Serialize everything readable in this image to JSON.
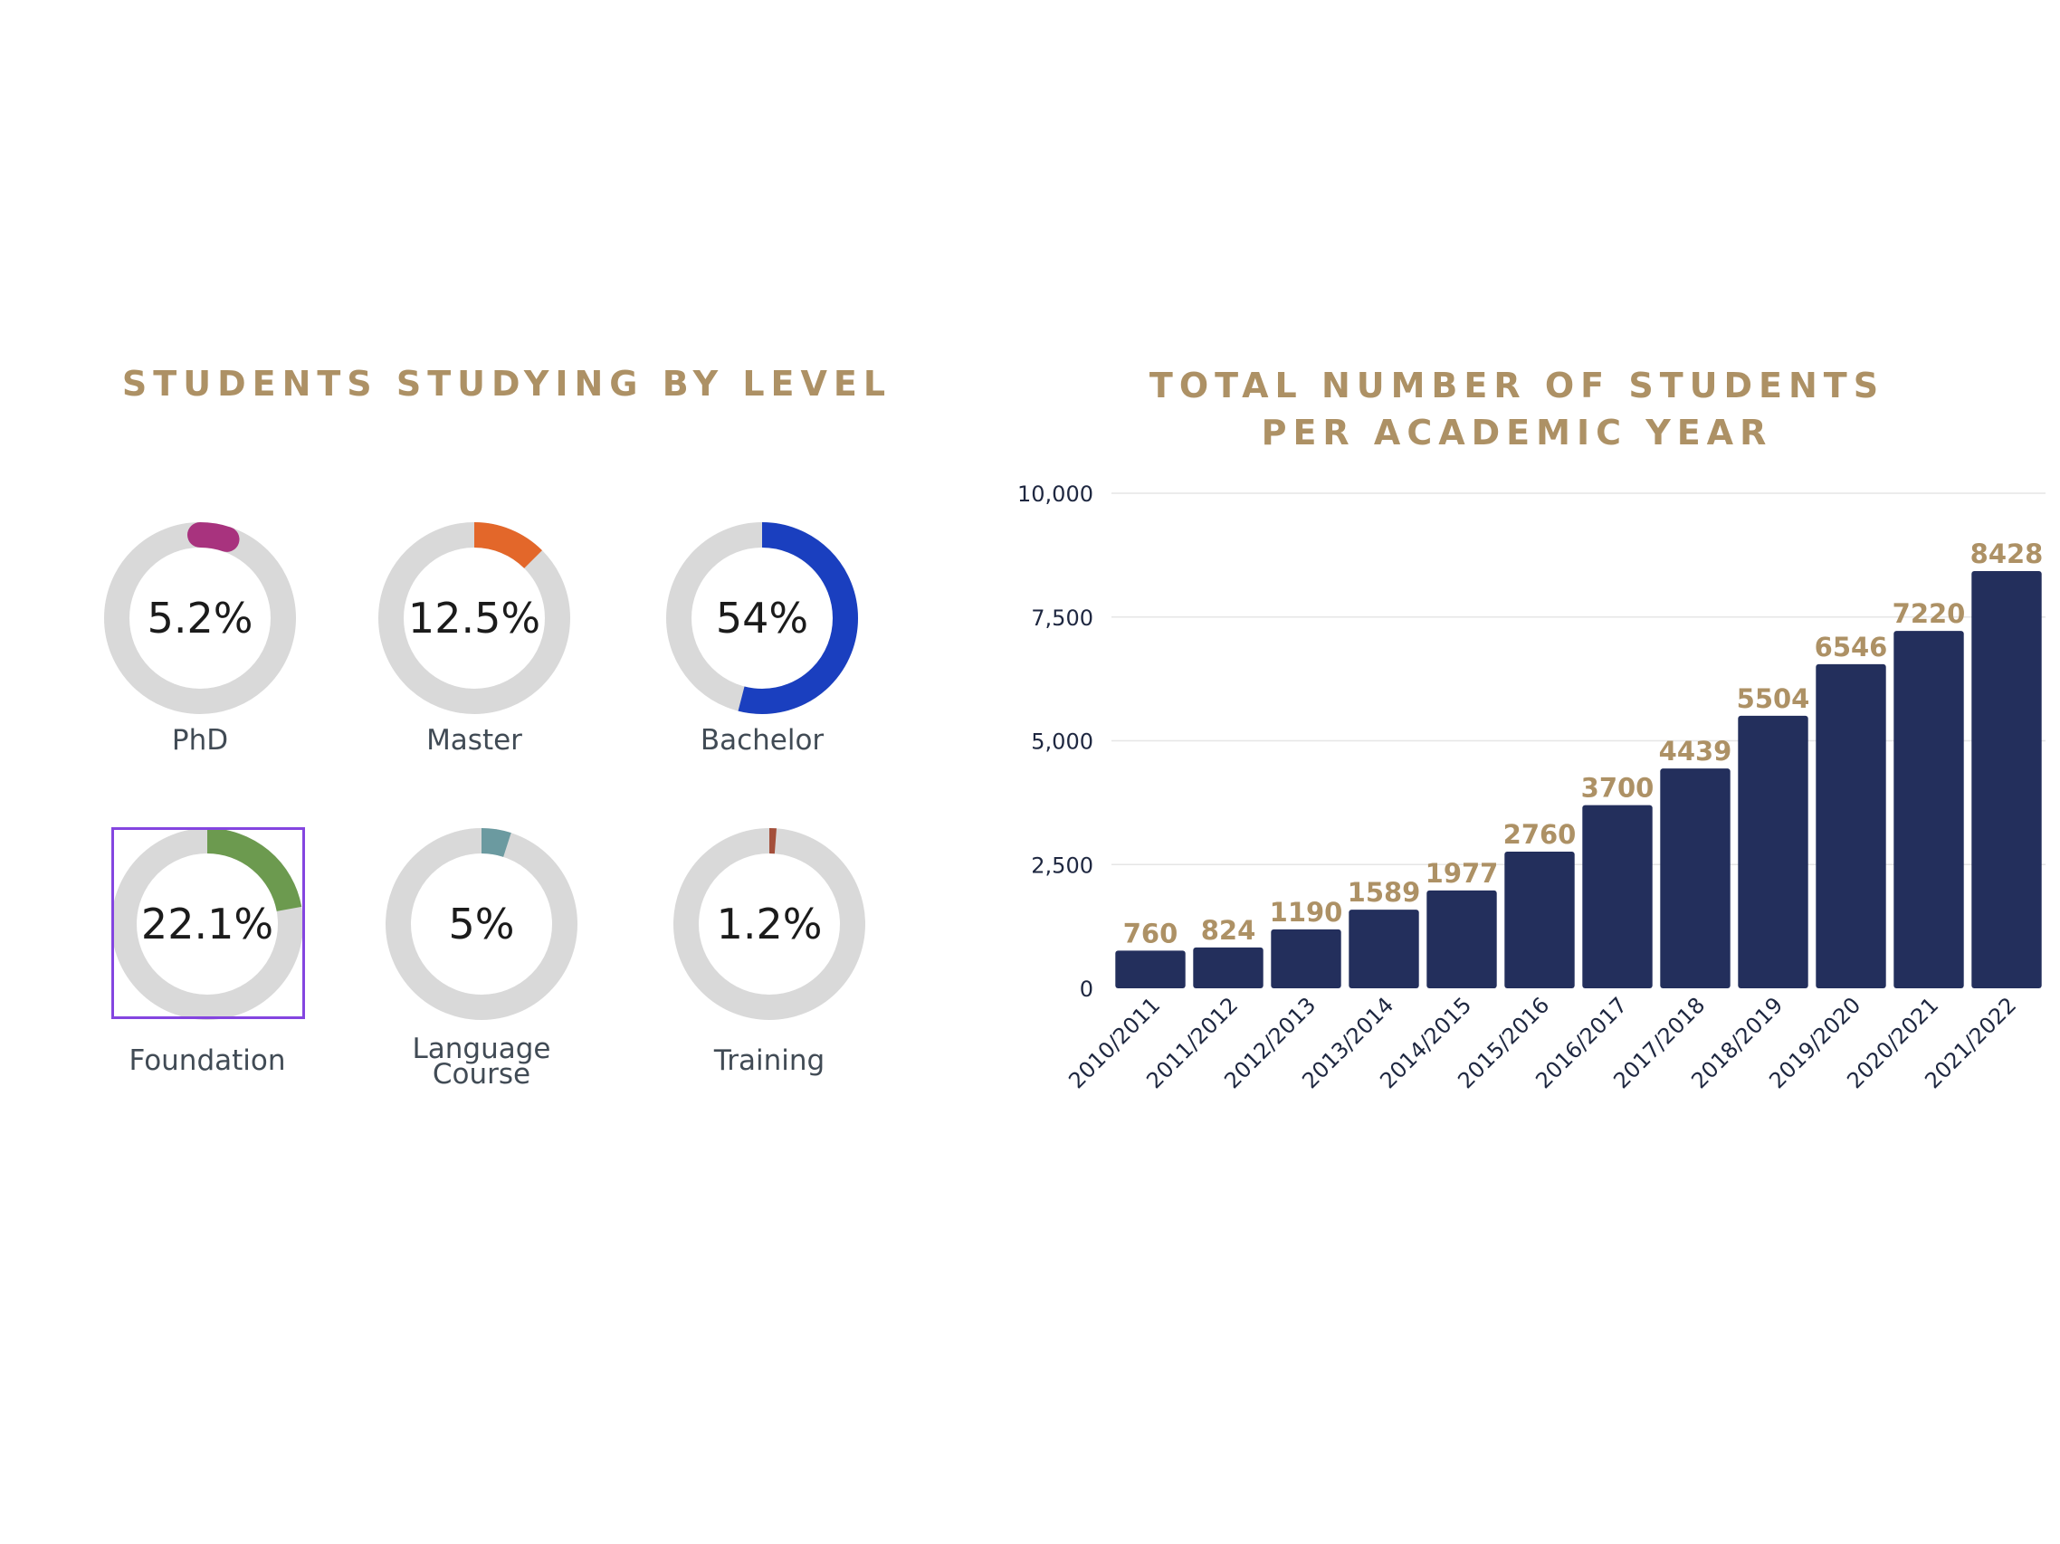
{
  "left_title": "STUDENTS STUDYING BY LEVEL",
  "right_title_line1": "TOTAL NUMBER OF STUDENTS",
  "right_title_line2": "PER ACADEMIC YEAR",
  "colors": {
    "title": "#ad9165",
    "track": "#d9d9d9",
    "bar": "#232f5c",
    "bar_label": "#ad9165",
    "highlight": "#8445e0"
  },
  "chart_data": [
    {
      "type": "pie",
      "title": "STUDENTS STUDYING BY LEVEL",
      "slices": [
        {
          "label": "PhD",
          "display": "5.2%",
          "value": 5.2,
          "color": "#a8337e"
        },
        {
          "label": "Master",
          "display": "12.5%",
          "value": 12.5,
          "color": "#e3672a"
        },
        {
          "label": "Bachelor",
          "display": "54%",
          "value": 54,
          "color": "#1a3fbf"
        },
        {
          "label": "Foundation",
          "display": "22.1%",
          "value": 22.1,
          "color": "#6c9a4f"
        },
        {
          "label": "Language Course",
          "display": "5%",
          "value": 5,
          "color": "#6b9aa0"
        },
        {
          "label": "Training",
          "display": "1.2%",
          "value": 1.2,
          "color": "#a44f3a"
        }
      ]
    },
    {
      "type": "bar",
      "title": "TOTAL NUMBER OF STUDENTS PER ACADEMIC YEAR",
      "categories": [
        "2010/2011",
        "2011/2012",
        "2012/2013",
        "2013/2014",
        "2014/2015",
        "2015/2016",
        "2016/2017",
        "2017/2018",
        "2018/2019",
        "2019/2020",
        "2020/2021",
        "2021/2022"
      ],
      "values": [
        760,
        824,
        1190,
        1589,
        1977,
        2760,
        3700,
        4439,
        5504,
        6546,
        7220,
        8428
      ],
      "yticks": [
        "0",
        "2,500",
        "5,000",
        "7,500",
        "10,000"
      ],
      "ylim": [
        0,
        10000
      ],
      "grid": true,
      "xlabel": "",
      "ylabel": ""
    }
  ]
}
